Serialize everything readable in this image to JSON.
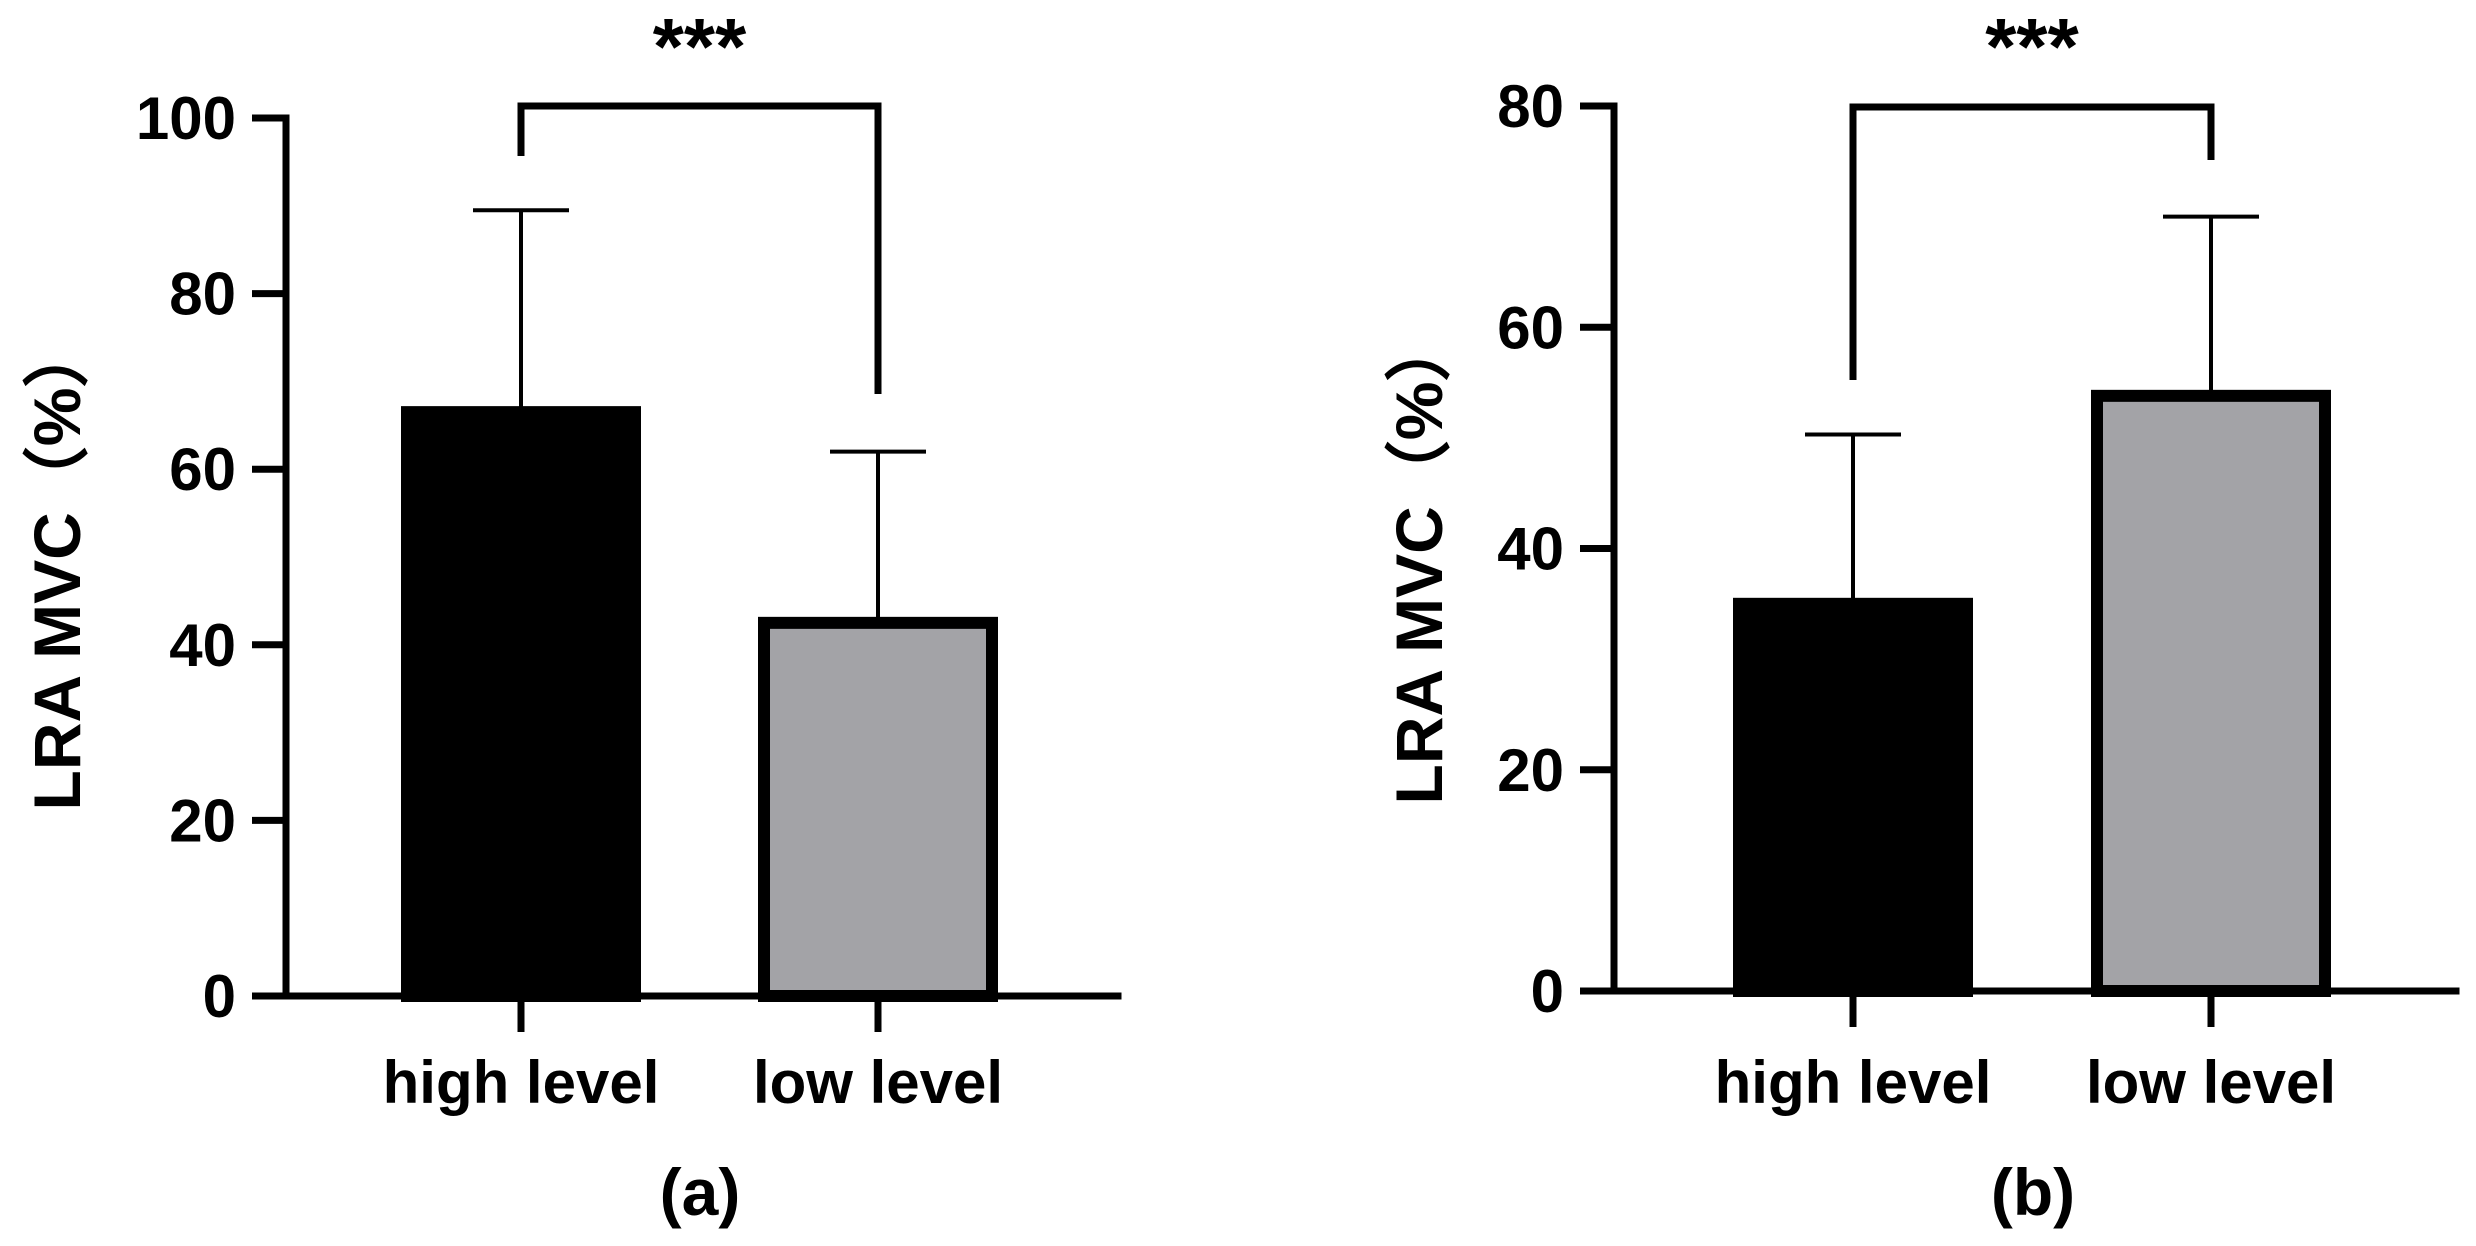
{
  "chart_data": [
    {
      "type": "bar",
      "panel_label": "(a)",
      "categories": [
        "high level",
        "low level"
      ],
      "values": [
        66.5,
        42.5
      ],
      "errors": [
        23,
        19.5
      ],
      "ylabel": "LRA MVC（%）",
      "ylim": [
        0,
        100
      ],
      "yticks": [
        0,
        20,
        40,
        60,
        80,
        100
      ],
      "colors": [
        "#000000",
        "#a3a3a7"
      ],
      "significance": "***",
      "grid": false
    },
    {
      "type": "bar",
      "panel_label": "(b)",
      "categories": [
        "high level",
        "low level"
      ],
      "values": [
        35,
        53.8
      ],
      "errors": [
        15.3,
        16.2
      ],
      "ylabel": "LRA MVC（%）",
      "ylim": [
        0,
        80
      ],
      "yticks": [
        0,
        20,
        40,
        60,
        80
      ],
      "colors": [
        "#000000",
        "#a3a3a7"
      ],
      "significance": "***",
      "grid": false
    }
  ]
}
